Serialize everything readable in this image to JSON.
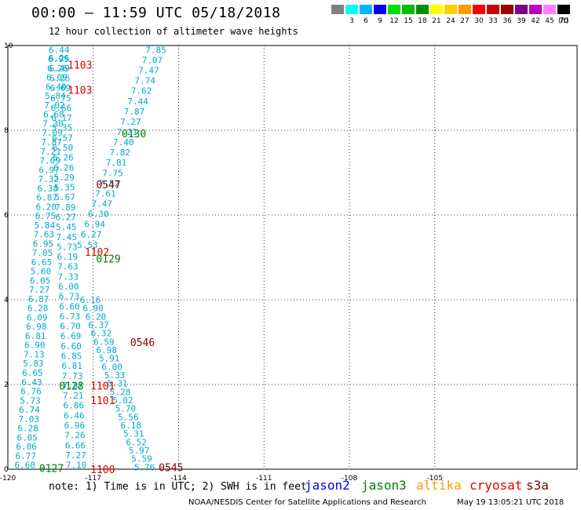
{
  "header": {
    "title": "00:00 — 11:59 UTC 05/18/2018",
    "subtitle": "12 hour collection of altimeter wave heights"
  },
  "legend": {
    "unit": "(ft)",
    "bins": [
      {
        "label": "",
        "color": "#7f7f7f"
      },
      {
        "label": "3",
        "color": "#00ffff"
      },
      {
        "label": "6",
        "color": "#00b7ff"
      },
      {
        "label": "9",
        "color": "#0000ff"
      },
      {
        "label": "12",
        "color": "#00e000"
      },
      {
        "label": "15",
        "color": "#00c000"
      },
      {
        "label": "18",
        "color": "#009000"
      },
      {
        "label": "21",
        "color": "#ffff00"
      },
      {
        "label": "24",
        "color": "#ffcc00"
      },
      {
        "label": "27",
        "color": "#ff9900"
      },
      {
        "label": "30",
        "color": "#ff0000"
      },
      {
        "label": "33",
        "color": "#d00000"
      },
      {
        "label": "36",
        "color": "#a00000"
      },
      {
        "label": "39",
        "color": "#800080"
      },
      {
        "label": "42",
        "color": "#c000c0"
      },
      {
        "label": "45",
        "color": "#ff80ff"
      },
      {
        "label": "70",
        "color": "#000000"
      }
    ]
  },
  "chart_data": {
    "type": "scatter",
    "xlim": [
      -120,
      -100
    ],
    "ylim": [
      0,
      10
    ],
    "xticks": [
      "-120",
      "-117",
      "-114",
      "-111",
      "-108",
      "-105"
    ],
    "yticks": [
      "0",
      "2",
      "4",
      "6",
      "8",
      "10"
    ],
    "grid": true,
    "color_wave": "#00aacc",
    "color_time_green": "#008000",
    "color_time_red": "#e00000",
    "color_time_maroon": "#800000",
    "tracks": [
      {
        "name": "track-a",
        "start": [
          -119.4,
          0.1
        ],
        "end": [
          -118.2,
          9.9
        ],
        "values": [
          "6.60",
          "6.77",
          "6.06",
          "6.05",
          "6.28",
          "7.03",
          "6.74",
          "5.73",
          "6.76",
          "6.43",
          "6.65",
          "5.83",
          "7.13",
          "6.90",
          "6.81",
          "6.98",
          "6.09",
          "6.28",
          "6.87",
          "7.27",
          "6.05",
          "5.60",
          "6.65",
          "7.05",
          "6.95",
          "7.63",
          "5.84",
          "6.75",
          "6.20",
          "6.87",
          "6.38",
          "7.32",
          "6.97",
          "7.09",
          "7.21",
          "7.87",
          "7.09",
          "7.30",
          "6.68",
          "7.02",
          "5.84",
          "6.40",
          "6.09",
          "6.26",
          "6.95",
          "6.44"
        ]
      },
      {
        "name": "track-b",
        "start": [
          -117.6,
          0.1
        ],
        "end": [
          -118.2,
          9.7
        ],
        "values": [
          "7.10",
          "7.27",
          "6.66",
          "7.26",
          "6.96",
          "6.46",
          "6.86",
          "7.21",
          "7.87",
          "7.73",
          "6.81",
          "6.85",
          "6.60",
          "6.69",
          "6.70",
          "6.73",
          "6.60",
          "6.73",
          "6.00",
          "7.33",
          "7.63",
          "6.19",
          "5.73",
          "7.45",
          "5.45",
          "6.27",
          "7.89",
          "5.67",
          "5.35",
          "5.29",
          "6.26",
          "6.26",
          "6.50",
          "6.57",
          "5.35",
          "6.17",
          "6.66",
          "6.75",
          "6.69",
          "6.25",
          "6.49",
          "6.26"
        ]
      },
      {
        "name": "track-c",
        "start": [
          -115.2,
          0.05
        ],
        "end": [
          -117.1,
          4.0
        ],
        "values": [
          "5.76",
          "5.59",
          "5.97",
          "6.52",
          "5.31",
          "6.18",
          "5.56",
          "5.70",
          "5.02",
          "5.28",
          "5.31",
          "5.33",
          "6.00",
          "5.91",
          "6.98",
          "6.59",
          "6.32",
          "6.37",
          "6.20",
          "6.90",
          "6.16"
        ]
      },
      {
        "name": "track-d",
        "start": [
          -117.2,
          5.3
        ],
        "end": [
          -114.8,
          9.9
        ],
        "values": [
          "5.53",
          "6.27",
          "6.94",
          "6.30",
          "7.47",
          "7.61",
          "7.52",
          "7.75",
          "7.81",
          "7.82",
          "7.40",
          "7.21",
          "7.27",
          "7.87",
          "7.44",
          "7.62",
          "7.74",
          "7.47",
          "7.07",
          "7.85"
        ]
      }
    ],
    "time_labels": [
      {
        "text": "1103",
        "x": -117.9,
        "y": 9.55,
        "color": "red"
      },
      {
        "text": "1103",
        "x": -117.9,
        "y": 8.95,
        "color": "red"
      },
      {
        "text": "0130",
        "x": -116.0,
        "y": 7.93,
        "color": "green"
      },
      {
        "text": "0547",
        "x": -116.9,
        "y": 6.72,
        "color": "maroon"
      },
      {
        "text": "1102",
        "x": -117.3,
        "y": 5.13,
        "color": "red"
      },
      {
        "text": "0129",
        "x": -116.9,
        "y": 4.97,
        "color": "green"
      },
      {
        "text": "0546",
        "x": -115.7,
        "y": 3.0,
        "color": "maroon"
      },
      {
        "text": "0128",
        "x": -118.2,
        "y": 1.97,
        "color": "green"
      },
      {
        "text": "1101",
        "x": -117.1,
        "y": 1.97,
        "color": "red"
      },
      {
        "text": "1101",
        "x": -117.1,
        "y": 1.63,
        "color": "red"
      },
      {
        "text": "0127",
        "x": -118.9,
        "y": 0.03,
        "color": "green"
      },
      {
        "text": "1100",
        "x": -117.1,
        "y": 0.0,
        "color": "red"
      },
      {
        "text": "0545",
        "x": -114.7,
        "y": 0.05,
        "color": "maroon"
      }
    ]
  },
  "footer": {
    "note": "note: 1) Time is in UTC; 2) SWH is in feet",
    "satellites": [
      {
        "name": "jason2",
        "color": "#0000ff"
      },
      {
        "name": "jason3",
        "color": "#008000"
      },
      {
        "name": "altika",
        "color": "#ff9900"
      },
      {
        "name": "cryosat",
        "color": "#e00000"
      },
      {
        "name": "s3a",
        "color": "#800000"
      }
    ],
    "credit": "NOAA/NESDIS Center for Satellite Applications and Research",
    "timestamp": "May 19 13:05:21 UTC 2018"
  }
}
